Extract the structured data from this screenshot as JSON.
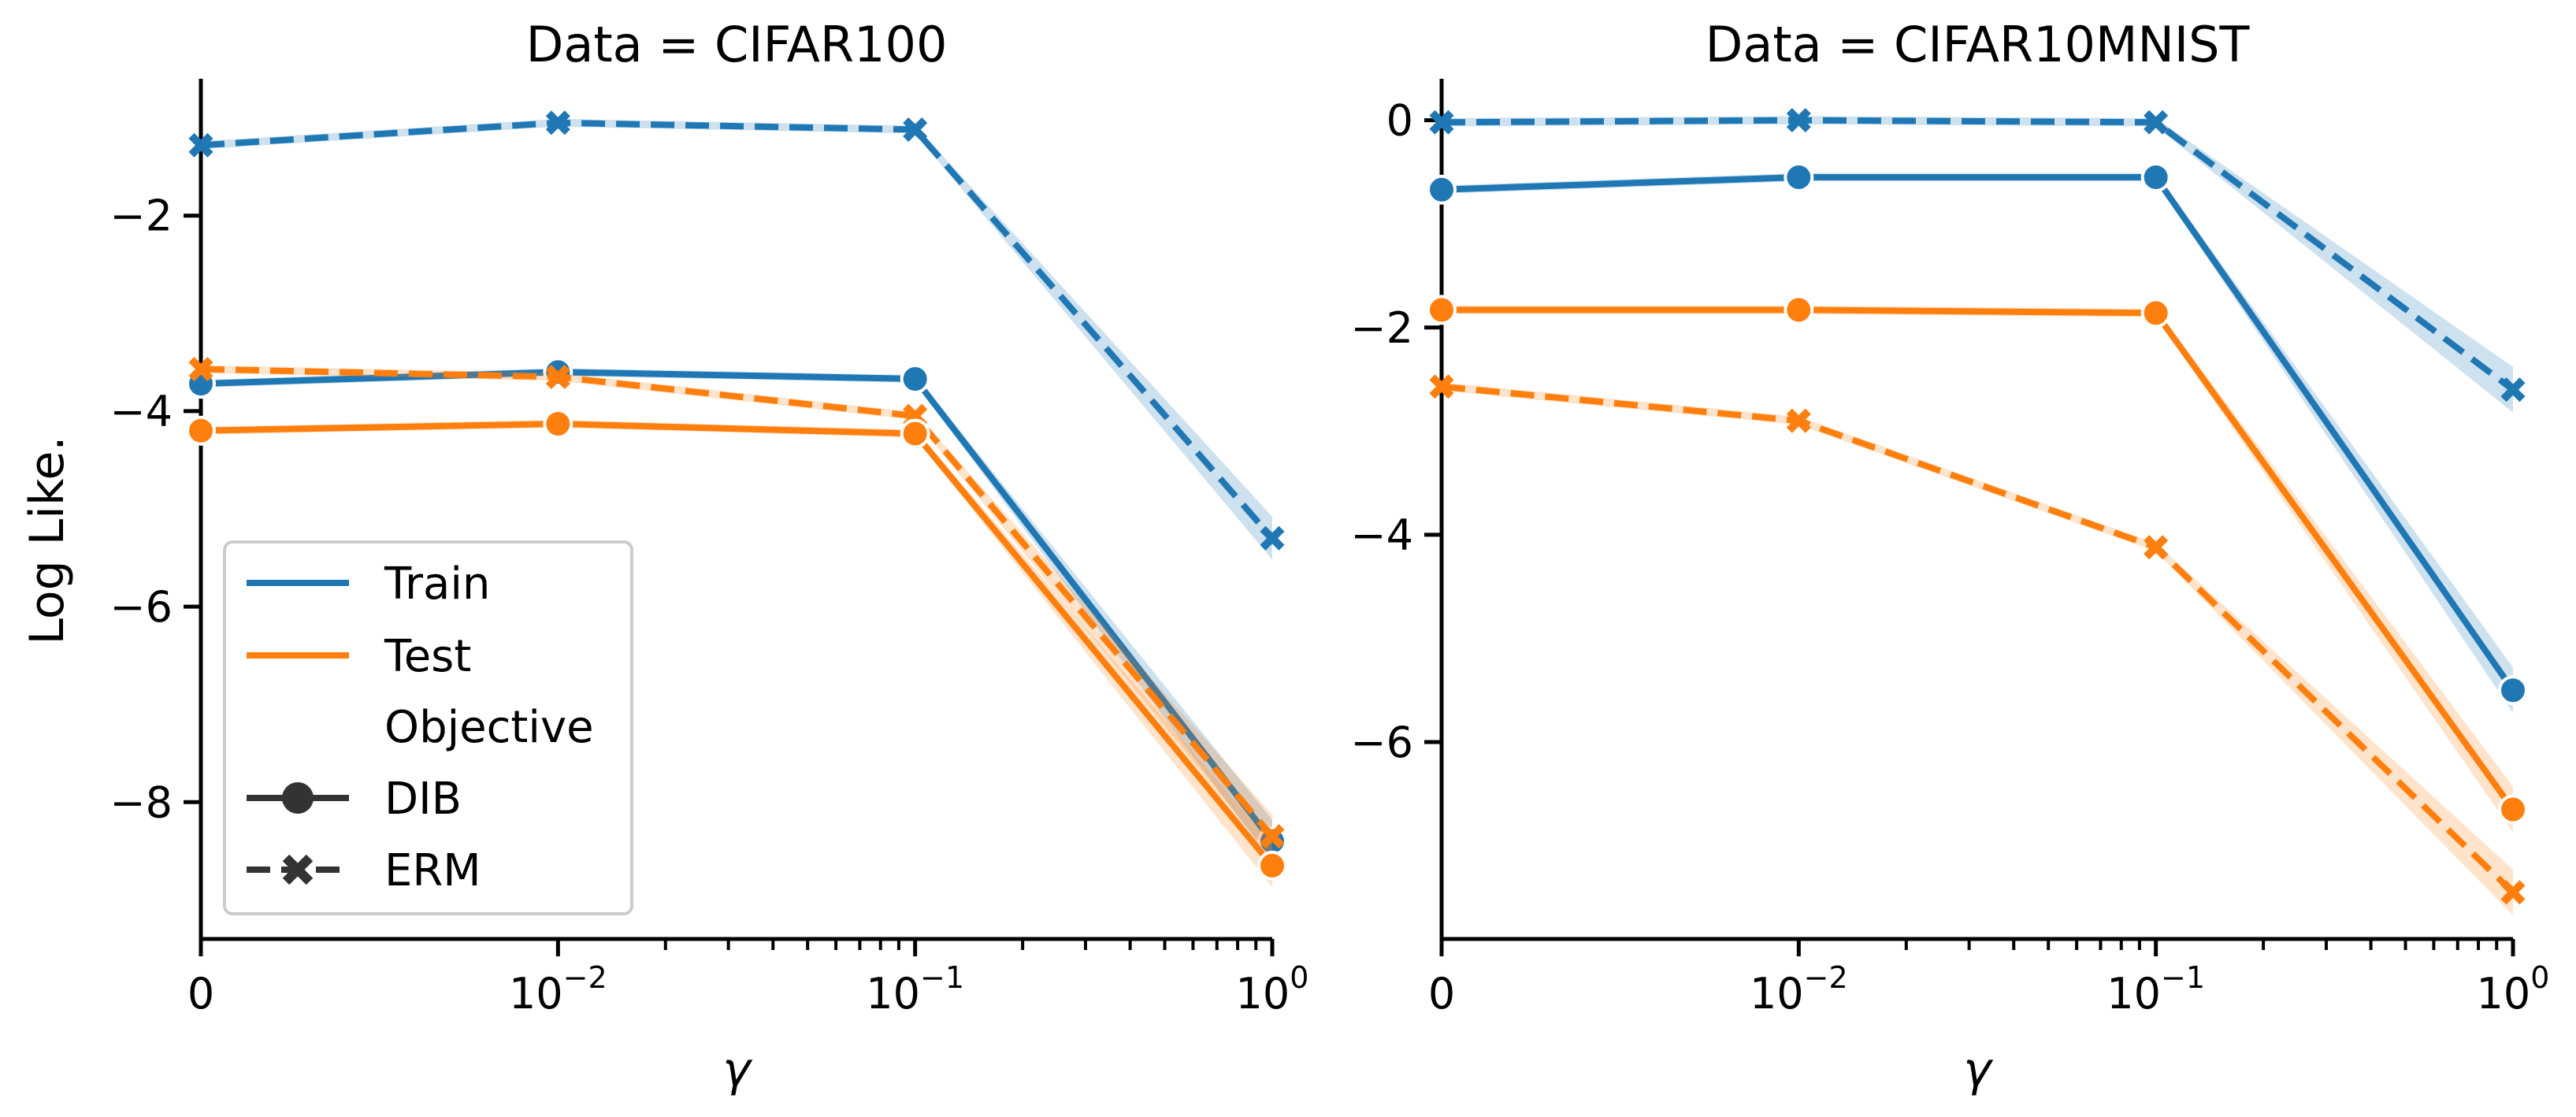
{
  "chart_data": [
    {
      "type": "line",
      "title": "Data = CIFAR100",
      "xlabel": "γ",
      "ylabel": "Log Like.",
      "x_ticks": [
        {
          "base": "0",
          "exp": ""
        },
        {
          "base": "10",
          "exp": "−2"
        },
        {
          "base": "10",
          "exp": "−1"
        },
        {
          "base": "10",
          "exp": "0"
        }
      ],
      "x": [
        0,
        0.01,
        0.1,
        1
      ],
      "y_ticks": [
        "−2",
        "−4",
        "−6",
        "−8"
      ],
      "y_tick_values": [
        -2,
        -4,
        -6,
        -8
      ],
      "ylim": [
        -9.4,
        -0.6
      ],
      "series": [
        {
          "name": "Train",
          "objective": "ERM",
          "color": "#1f77b4",
          "values": [
            -1.28,
            -1.05,
            -1.12,
            -5.3
          ]
        },
        {
          "name": "Train",
          "objective": "DIB",
          "color": "#1f77b4",
          "values": [
            -3.72,
            -3.6,
            -3.67,
            -8.4
          ]
        },
        {
          "name": "Test",
          "objective": "ERM",
          "color": "#ff7f0e",
          "values": [
            -3.57,
            -3.65,
            -4.05,
            -8.35
          ]
        },
        {
          "name": "Test",
          "objective": "DIB",
          "color": "#ff7f0e",
          "values": [
            -4.2,
            -4.13,
            -4.23,
            -8.65
          ]
        }
      ]
    },
    {
      "type": "line",
      "title": "Data = CIFAR10MNIST",
      "xlabel": "γ",
      "ylabel": "",
      "x_ticks": [
        {
          "base": "0",
          "exp": ""
        },
        {
          "base": "10",
          "exp": "−2"
        },
        {
          "base": "10",
          "exp": "−1"
        },
        {
          "base": "10",
          "exp": "0"
        }
      ],
      "x": [
        0,
        0.01,
        0.1,
        1
      ],
      "y_ticks": [
        "0",
        "−2",
        "−4",
        "−6"
      ],
      "y_tick_values": [
        0,
        -2,
        -4,
        -6
      ],
      "ylim": [
        -7.9,
        0.4
      ],
      "series": [
        {
          "name": "Train",
          "objective": "ERM",
          "color": "#1f77b4",
          "values": [
            -0.02,
            0.0,
            -0.02,
            -2.6
          ]
        },
        {
          "name": "Train",
          "objective": "DIB",
          "color": "#1f77b4",
          "values": [
            -0.67,
            -0.55,
            -0.55,
            -5.5
          ]
        },
        {
          "name": "Test",
          "objective": "ERM",
          "color": "#ff7f0e",
          "values": [
            -2.57,
            -2.9,
            -4.12,
            -7.45
          ]
        },
        {
          "name": "Test",
          "objective": "DIB",
          "color": "#ff7f0e",
          "values": [
            -1.83,
            -1.83,
            -1.86,
            -6.65
          ]
        }
      ]
    }
  ],
  "legend": {
    "placement": "lower-left of left panel",
    "entries": [
      {
        "label": "Train",
        "kind": "line",
        "color": "#1f77b4"
      },
      {
        "label": "Test",
        "kind": "line",
        "color": "#ff7f0e"
      },
      {
        "label": "Objective",
        "kind": "header"
      },
      {
        "label": "DIB",
        "kind": "solid-circle",
        "color": "#333333"
      },
      {
        "label": "ERM",
        "kind": "dashed-x",
        "color": "#333333"
      }
    ]
  }
}
